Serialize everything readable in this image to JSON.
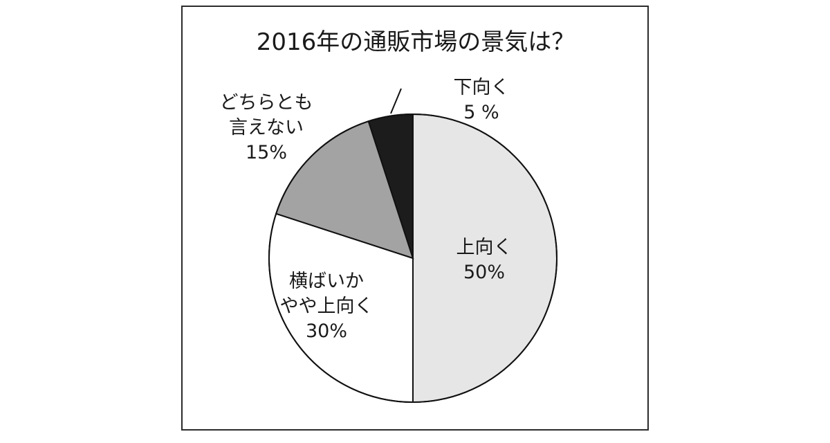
{
  "chart_data": {
    "type": "pie",
    "title": "2016年の通販市場の景気は？",
    "slices": [
      {
        "label_lines": [
          "上向く",
          "50%"
        ],
        "value": 50,
        "color": "#e6e6e6"
      },
      {
        "label_lines": [
          "横ばいか",
          "やや上向く",
          "30%"
        ],
        "value": 30,
        "color": "#ffffff"
      },
      {
        "label_lines": [
          "どちらとも",
          "言えない",
          "15%"
        ],
        "value": 15,
        "color": "#a3a3a3"
      },
      {
        "label_lines": [
          "下向く",
          "5 %"
        ],
        "value": 5,
        "color": "#1c1c1c"
      }
    ]
  }
}
